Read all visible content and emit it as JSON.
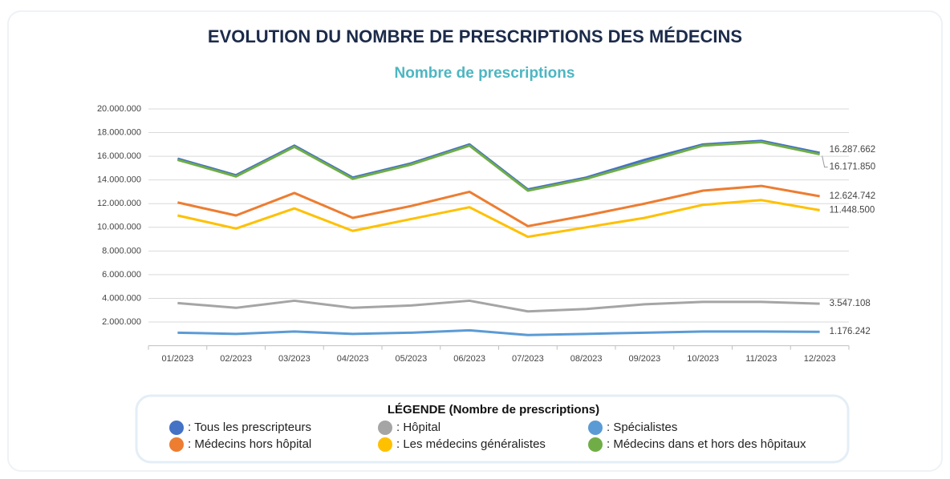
{
  "chart_data": {
    "type": "line",
    "title": "EVOLUTION DU NOMBRE DE PRESCRIPTIONS DES MÉDECINS",
    "subtitle": "Nombre de prescriptions",
    "legend_title": "LÉGENDE (Nombre de prescriptions)",
    "categories": [
      "01/2023",
      "02/2023",
      "03/2023",
      "04/2023",
      "05/2023",
      "06/2023",
      "07/2023",
      "08/2023",
      "09/2023",
      "10/2023",
      "11/2023",
      "12/2023"
    ],
    "ylim": [
      0,
      20000000
    ],
    "yticks": [
      {
        "value": 2000000,
        "label": "2.000.000"
      },
      {
        "value": 4000000,
        "label": "4.000.000"
      },
      {
        "value": 6000000,
        "label": "6.000.000"
      },
      {
        "value": 8000000,
        "label": "8.000.000"
      },
      {
        "value": 10000000,
        "label": "10.000.000"
      },
      {
        "value": 12000000,
        "label": "12.000.000"
      },
      {
        "value": 14000000,
        "label": "14.000.000"
      },
      {
        "value": 16000000,
        "label": "16.000.000"
      },
      {
        "value": 18000000,
        "label": "18.000.000"
      },
      {
        "value": 20000000,
        "label": "20.000.000"
      }
    ],
    "grid": true,
    "series": [
      {
        "name": ": Tous les prescripteurs",
        "color": "#4472c4",
        "values": [
          15800000,
          14400000,
          16900000,
          14200000,
          15400000,
          17000000,
          13200000,
          14200000,
          15700000,
          17000000,
          17300000,
          16287662
        ],
        "value_labels": [
          null,
          null,
          null,
          null,
          null,
          null,
          null,
          null,
          null,
          null,
          null,
          "16.287.662"
        ]
      },
      {
        "name": ": Médecins hors hôpital",
        "color": "#ed7d31",
        "values": [
          12100000,
          11000000,
          12900000,
          10800000,
          11800000,
          13000000,
          10100000,
          11000000,
          12000000,
          13100000,
          13500000,
          12624742
        ],
        "value_labels": [
          null,
          null,
          null,
          null,
          null,
          null,
          null,
          null,
          null,
          null,
          null,
          "12.624.742"
        ]
      },
      {
        "name": ": Hôpital",
        "color": "#a5a5a5",
        "values": [
          3600000,
          3200000,
          3800000,
          3200000,
          3400000,
          3800000,
          2900000,
          3100000,
          3500000,
          3700000,
          3700000,
          3547108
        ],
        "value_labels": [
          null,
          null,
          null,
          null,
          null,
          null,
          null,
          null,
          null,
          null,
          null,
          "3.547.108"
        ]
      },
      {
        "name": ": Les médecins généralistes",
        "color": "#ffc000",
        "values": [
          11000000,
          9900000,
          11600000,
          9700000,
          10700000,
          11700000,
          9200000,
          10000000,
          10800000,
          11900000,
          12300000,
          11448500
        ],
        "value_labels": [
          null,
          null,
          null,
          null,
          null,
          null,
          null,
          null,
          null,
          null,
          null,
          "11.448.500"
        ]
      },
      {
        "name": ": Spécialistes",
        "color": "#5b9bd5",
        "values": [
          1100000,
          1000000,
          1200000,
          1000000,
          1100000,
          1300000,
          900000,
          1000000,
          1100000,
          1200000,
          1200000,
          1176242
        ],
        "value_labels": [
          null,
          null,
          null,
          null,
          null,
          null,
          null,
          null,
          null,
          null,
          null,
          "1.176.242"
        ]
      },
      {
        "name": ": Médecins dans et hors des hôpitaux",
        "color": "#70ad47",
        "values": [
          15700000,
          14300000,
          16800000,
          14100000,
          15300000,
          16900000,
          13100000,
          14100000,
          15500000,
          16900000,
          17200000,
          16171850
        ],
        "value_labels": [
          null,
          null,
          null,
          null,
          null,
          null,
          null,
          null,
          null,
          null,
          null,
          "16.171.850"
        ]
      }
    ]
  }
}
